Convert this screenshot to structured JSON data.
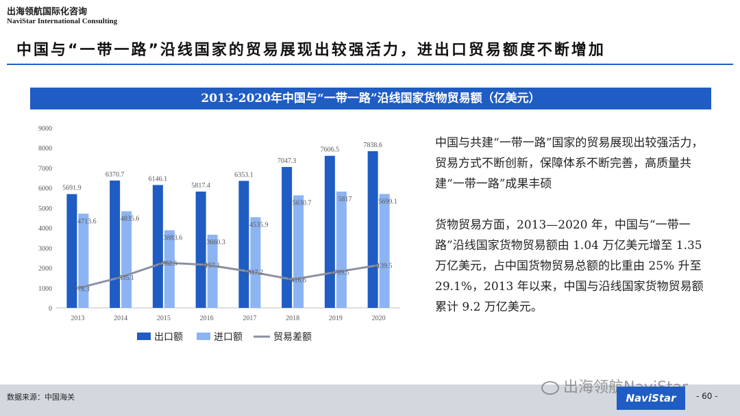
{
  "brand": {
    "cn": "出海领航国际化咨询",
    "en": "NaviStar International Consulting"
  },
  "title": "中国与“一带一路”沿线国家的贸易展现出较强活力，进出口贸易额度不断增加",
  "chart_header": "2013-2020年中国与“一带一路”沿线国家货物贸易额（亿美元）",
  "paragraphs": [
    "中国与共建“一带一路”国家的贸易展现出较强活力，贸易方式不断创新，保障体系不断完善，高质量共建“一带一路”成果丰硕",
    "货物贸易方面，2013—2020 年，中国与“一带一路”沿线国家货物贸易额由 1.04 万亿美元增至 1.35 万亿美元，占中国货物贸易总额的比重由 25% 升至 29.1%，2013 年以来，中国与沿线国家货物贸易额累计 9.2 万亿美元。"
  ],
  "footer": {
    "source": "数据来源：中国海关",
    "watermark": "出海领航NaviStar",
    "logo": "NaviStar",
    "page": "- 60 -"
  },
  "colors": {
    "accent": "#1f5cc4",
    "export": "#1f5cc4",
    "import": "#8db4f2",
    "balance": "#8a8fa3"
  },
  "chart_data": {
    "type": "bar",
    "categories": [
      "2013",
      "2014",
      "2015",
      "2016",
      "2017",
      "2018",
      "2019",
      "2020"
    ],
    "series": [
      {
        "name": "出口额",
        "type": "bar",
        "values": [
          5691.9,
          6370.7,
          6146.1,
          5817.4,
          6353.1,
          7047.3,
          7606.5,
          7838.6
        ]
      },
      {
        "name": "进口额",
        "type": "bar",
        "values": [
          4713.6,
          4835.6,
          3883.6,
          3660.3,
          4535.9,
          5630.7,
          5817,
          5699.1
        ]
      },
      {
        "name": "贸易差额",
        "type": "line",
        "values": [
          978.3,
          1535.1,
          2262.5,
          2157.1,
          1817.2,
          1416.6,
          1789.5,
          2139.5
        ]
      }
    ],
    "yticks": [
      "0",
      "1000",
      "2000",
      "3000",
      "4000",
      "5000",
      "6000",
      "7000",
      "8000",
      "9000"
    ],
    "ylim": [
      0,
      9000
    ],
    "grid": false,
    "legend": "bottom"
  }
}
